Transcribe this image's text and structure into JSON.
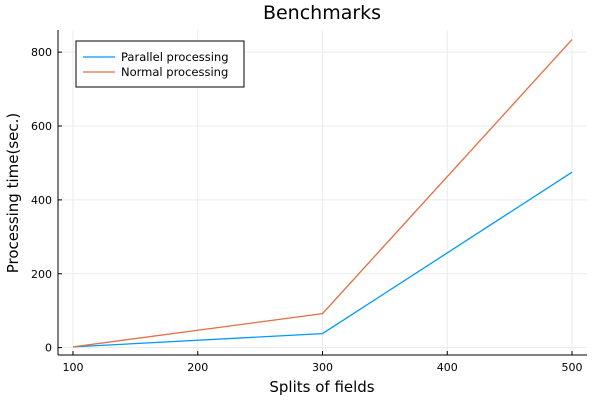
{
  "chart_data": {
    "type": "line",
    "title": "Benchmarks",
    "xlabel": "Splits of fields",
    "ylabel": "Processing time(sec.)",
    "xlim": [
      88,
      512
    ],
    "ylim": [
      -20,
      860
    ],
    "x_ticks": [
      100,
      200,
      300,
      400,
      500
    ],
    "y_ticks": [
      0,
      200,
      400,
      600,
      800
    ],
    "grid": true,
    "legend_position": "top-left",
    "series": [
      {
        "name": "Parallel processing",
        "color": "#009af9",
        "x": [
          100,
          300,
          500
        ],
        "y": [
          2,
          38,
          475
        ]
      },
      {
        "name": "Normal processing",
        "color": "#e26f46",
        "x": [
          100,
          300,
          500
        ],
        "y": [
          2,
          92,
          834
        ]
      }
    ]
  }
}
